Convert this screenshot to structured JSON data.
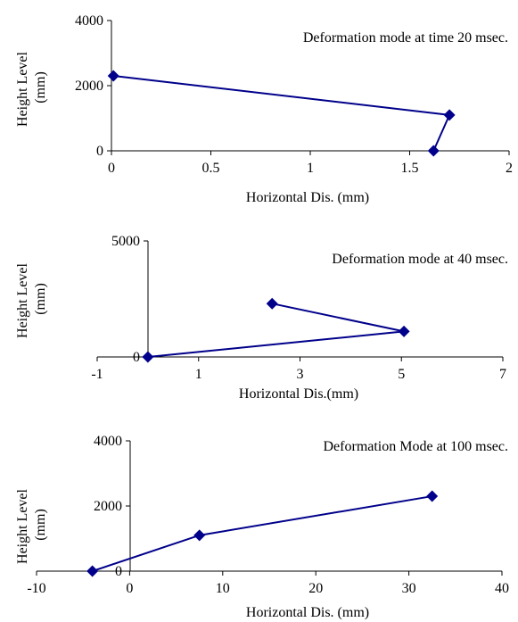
{
  "chart_data": [
    {
      "type": "line",
      "title": "Deformation mode at time 20 msec.",
      "xlabel": "Horizontal Dis. (mm)",
      "ylabel": "Height Level (mm)",
      "xlim": [
        0,
        2
      ],
      "ylim": [
        0,
        4000
      ],
      "xticks": [
        0,
        0.5,
        1,
        1.5,
        2
      ],
      "xtick_labels": [
        "0",
        "0.5",
        "1",
        "1.5",
        "2"
      ],
      "yticks": [
        0,
        2000,
        4000
      ],
      "ytick_labels": [
        "0",
        "2000",
        "4000"
      ],
      "grid": false,
      "legend": "none",
      "series": [
        {
          "x": [
            1.62,
            1.7,
            0.01
          ],
          "y": [
            0,
            1100,
            2300
          ]
        }
      ],
      "color": "#00008B"
    },
    {
      "type": "line",
      "title": "Deformation mode at 40 msec.",
      "xlabel": "Horizontal Dis.(mm)",
      "ylabel": "Height Level (mm)",
      "xlim": [
        -1,
        7
      ],
      "ylim": [
        0,
        5000
      ],
      "xticks": [
        -1,
        1,
        3,
        5,
        7
      ],
      "xtick_labels": [
        "-1",
        "1",
        "3",
        "5",
        "7"
      ],
      "yticks": [
        0,
        5000
      ],
      "ytick_labels": [
        "0",
        "5000"
      ],
      "grid": false,
      "legend": "none",
      "series": [
        {
          "x": [
            0,
            5.05,
            2.45
          ],
          "y": [
            0,
            1100,
            2300
          ]
        }
      ],
      "color": "#00008B"
    },
    {
      "type": "line",
      "title": "Deformation Mode at 100 msec.",
      "xlabel": "Horizontal Dis. (mm)",
      "ylabel": "Height Level (mm)",
      "xlim": [
        -10,
        40
      ],
      "ylim": [
        0,
        4000
      ],
      "xticks": [
        -10,
        0,
        10,
        20,
        30,
        40
      ],
      "xtick_labels": [
        "-10",
        "0",
        "10",
        "20",
        "30",
        "40"
      ],
      "yticks": [
        0,
        2000,
        4000
      ],
      "ytick_labels": [
        "0",
        "2000",
        "4000"
      ],
      "grid": false,
      "legend": "none",
      "series": [
        {
          "x": [
            -4,
            7.5,
            32.5
          ],
          "y": [
            0,
            1100,
            2300
          ]
        }
      ],
      "color": "#00008B"
    }
  ]
}
